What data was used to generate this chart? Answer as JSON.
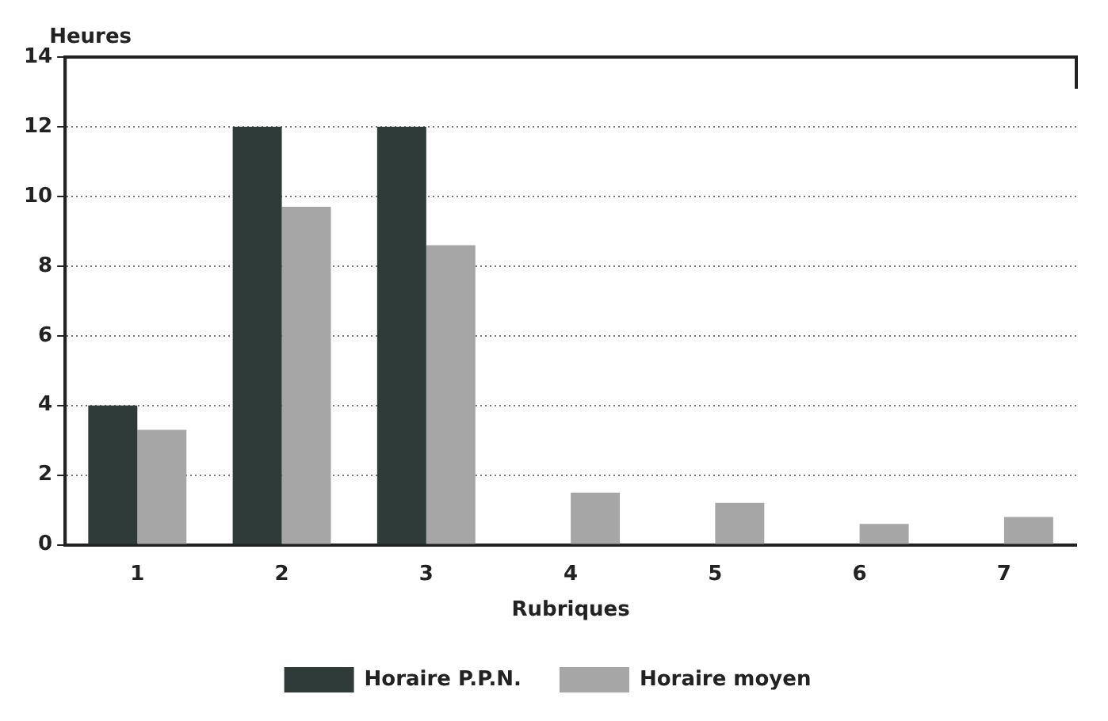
{
  "chart_data": {
    "type": "bar",
    "xlabel": "Rubriques",
    "ylabel": "Heures",
    "categories": [
      "1",
      "2",
      "3",
      "4",
      "5",
      "6",
      "7"
    ],
    "series": [
      {
        "name": "Horaire P.P.N.",
        "color": "#2f3b38",
        "values": [
          4,
          12,
          12,
          0,
          0,
          0,
          0
        ]
      },
      {
        "name": "Horaire moyen",
        "color": "#a6a6a6",
        "values": [
          3.3,
          9.7,
          8.6,
          1.5,
          1.2,
          0.6,
          0.8
        ]
      }
    ],
    "ylim": [
      0,
      14
    ],
    "yticks": [
      0,
      2,
      4,
      6,
      8,
      10,
      12,
      14
    ],
    "grid": "y",
    "legend": "bottom"
  }
}
